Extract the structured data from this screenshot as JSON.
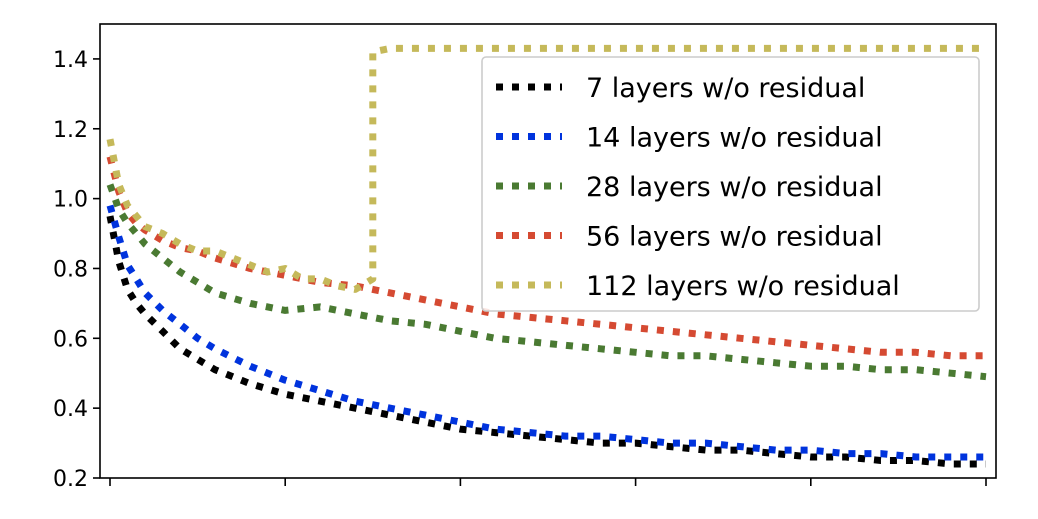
{
  "chart_data": {
    "type": "line",
    "title": "",
    "xlabel": "",
    "ylabel": "",
    "xlim": [
      0,
      50
    ],
    "ylim": [
      0.2,
      1.5
    ],
    "x_ticks": [
      0,
      10,
      20,
      30,
      40,
      50
    ],
    "y_ticks": [
      {
        "value": 0.2,
        "label": "0.2"
      },
      {
        "value": 0.4,
        "label": "0.4"
      },
      {
        "value": 0.6,
        "label": "0.6"
      },
      {
        "value": 0.8,
        "label": "0.8"
      },
      {
        "value": 1.0,
        "label": "1.0"
      },
      {
        "value": 1.2,
        "label": "1.2"
      },
      {
        "value": 1.4,
        "label": "1.4"
      }
    ],
    "grid": false,
    "legend_position": "top-right",
    "series": [
      {
        "name": "7 layers w/o residual",
        "color": "#000000",
        "x": [
          0,
          0.5,
          1,
          1.5,
          2,
          3,
          4,
          5,
          6,
          8,
          10,
          12,
          14,
          16,
          18,
          20,
          22,
          24,
          26,
          28,
          30,
          32,
          34,
          36,
          38,
          40,
          42,
          44,
          46,
          48,
          50
        ],
        "y": [
          0.95,
          0.82,
          0.74,
          0.7,
          0.67,
          0.62,
          0.57,
          0.54,
          0.51,
          0.47,
          0.44,
          0.42,
          0.4,
          0.38,
          0.36,
          0.34,
          0.33,
          0.32,
          0.31,
          0.3,
          0.3,
          0.29,
          0.28,
          0.28,
          0.27,
          0.26,
          0.26,
          0.25,
          0.25,
          0.24,
          0.24
        ]
      },
      {
        "name": "14 layers w/o residual",
        "color": "#0033dd",
        "x": [
          0,
          0.5,
          1,
          1.5,
          2,
          3,
          4,
          5,
          6,
          8,
          10,
          12,
          14,
          16,
          18,
          20,
          22,
          24,
          26,
          28,
          30,
          32,
          34,
          36,
          38,
          40,
          42,
          44,
          46,
          48,
          50
        ],
        "y": [
          0.98,
          0.89,
          0.81,
          0.77,
          0.73,
          0.68,
          0.64,
          0.6,
          0.57,
          0.52,
          0.48,
          0.45,
          0.42,
          0.4,
          0.38,
          0.36,
          0.34,
          0.33,
          0.32,
          0.32,
          0.31,
          0.3,
          0.3,
          0.29,
          0.28,
          0.28,
          0.27,
          0.27,
          0.26,
          0.26,
          0.26
        ]
      },
      {
        "name": "28 layers w/o residual",
        "color": "#4a7a32",
        "x": [
          0,
          0.5,
          1,
          1.5,
          2,
          3,
          4,
          5,
          6,
          8,
          10,
          12,
          14,
          16,
          18,
          20,
          22,
          24,
          26,
          28,
          30,
          32,
          34,
          36,
          38,
          40,
          42,
          44,
          46,
          48,
          50
        ],
        "y": [
          1.04,
          0.97,
          0.93,
          0.9,
          0.87,
          0.83,
          0.79,
          0.76,
          0.73,
          0.7,
          0.68,
          0.69,
          0.67,
          0.65,
          0.64,
          0.62,
          0.6,
          0.59,
          0.58,
          0.57,
          0.56,
          0.55,
          0.55,
          0.54,
          0.53,
          0.52,
          0.52,
          0.51,
          0.51,
          0.5,
          0.49
        ]
      },
      {
        "name": "56 layers w/o residual",
        "color": "#d54a32",
        "x": [
          0,
          0.5,
          1,
          1.5,
          2,
          3,
          4,
          5,
          6,
          8,
          10,
          12,
          14,
          16,
          18,
          20,
          22,
          24,
          26,
          28,
          30,
          32,
          34,
          36,
          38,
          40,
          42,
          44,
          46,
          48,
          50
        ],
        "y": [
          1.12,
          1.02,
          0.96,
          0.93,
          0.91,
          0.88,
          0.86,
          0.85,
          0.83,
          0.8,
          0.78,
          0.76,
          0.75,
          0.73,
          0.71,
          0.69,
          0.67,
          0.66,
          0.65,
          0.64,
          0.63,
          0.62,
          0.61,
          0.6,
          0.59,
          0.58,
          0.57,
          0.56,
          0.56,
          0.55,
          0.55
        ]
      },
      {
        "name": "112 layers w/o residual",
        "color": "#c5b95a",
        "x": [
          0,
          0.5,
          1,
          1.5,
          2,
          3,
          4,
          5,
          6,
          7,
          8,
          9,
          10,
          11,
          12,
          13,
          14,
          15,
          15,
          16,
          18,
          20,
          22,
          24,
          26,
          28,
          30,
          32,
          34,
          36,
          38,
          40,
          42,
          44,
          46,
          48,
          50
        ],
        "y": [
          1.17,
          1.04,
          0.98,
          0.95,
          0.92,
          0.9,
          0.87,
          0.85,
          0.85,
          0.83,
          0.81,
          0.79,
          0.8,
          0.77,
          0.77,
          0.75,
          0.74,
          0.77,
          1.42,
          1.43,
          1.43,
          1.43,
          1.43,
          1.43,
          1.43,
          1.43,
          1.43,
          1.43,
          1.43,
          1.43,
          1.43,
          1.43,
          1.43,
          1.43,
          1.43,
          1.43,
          1.43
        ]
      }
    ]
  }
}
